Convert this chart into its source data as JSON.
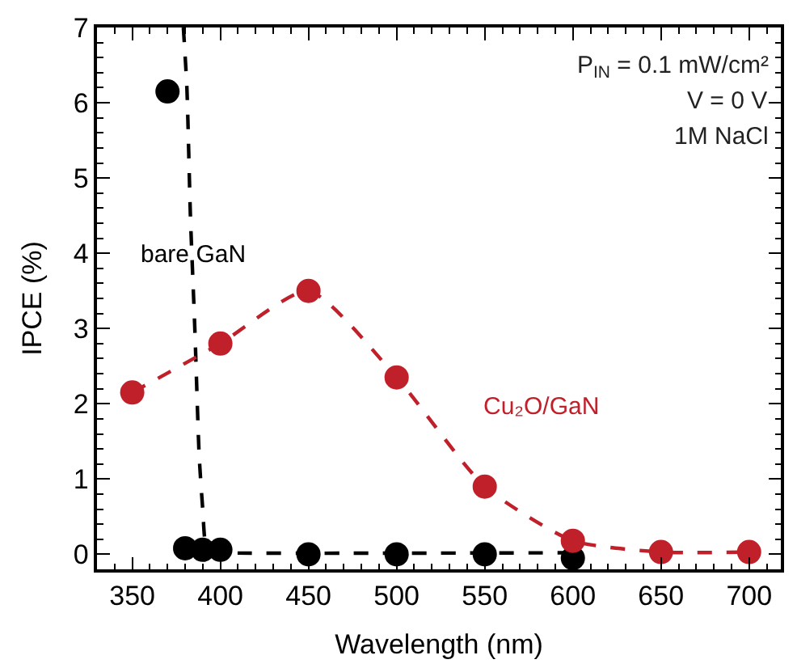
{
  "chart_data": {
    "type": "scatter",
    "xlabel": "Wavelength (nm)",
    "ylabel": "IPCE (%)",
    "annotations": [
      "P$_{IN}$ = 0.1 mW/cm²",
      "V = 0 V",
      "1M NaCl"
    ],
    "series": [
      {
        "name": "bare GaN",
        "color": "#000000",
        "x": [
          370,
          380,
          390,
          400,
          450,
          500,
          550,
          600
        ],
        "values": [
          6.15,
          0.08,
          0.06,
          0.06,
          0.0,
          0.0,
          0.0,
          -0.05
        ]
      },
      {
        "type": "line",
        "color": "#000000",
        "line_style": "dashed",
        "marker": "none",
        "x": [
          379,
          381,
          383,
          385.5,
          388,
          390,
          392,
          396,
          400,
          595
        ],
        "values": [
          7,
          6.2,
          4.5,
          3,
          1.3,
          0.6,
          0.1,
          0.03,
          0.02,
          0.02
        ]
      },
      {
        "name": "Cu₂O/GaN",
        "type": "line",
        "color": "#c0202a",
        "line_style": "dashed",
        "x": [
          350,
          400,
          450,
          500,
          550,
          600,
          650,
          700
        ],
        "values": [
          2.15,
          2.8,
          3.5,
          2.35,
          0.9,
          0.18,
          0.03,
          0.03
        ]
      }
    ],
    "xlim": [
      330,
      718
    ],
    "xticks": [
      350,
      400,
      450,
      500,
      550,
      600,
      650,
      700
    ],
    "ylim": [
      -0.2,
      7
    ],
    "yticks": [
      0,
      1,
      2,
      3,
      4,
      5,
      6,
      7
    ],
    "legend": false,
    "marker": "circle"
  }
}
